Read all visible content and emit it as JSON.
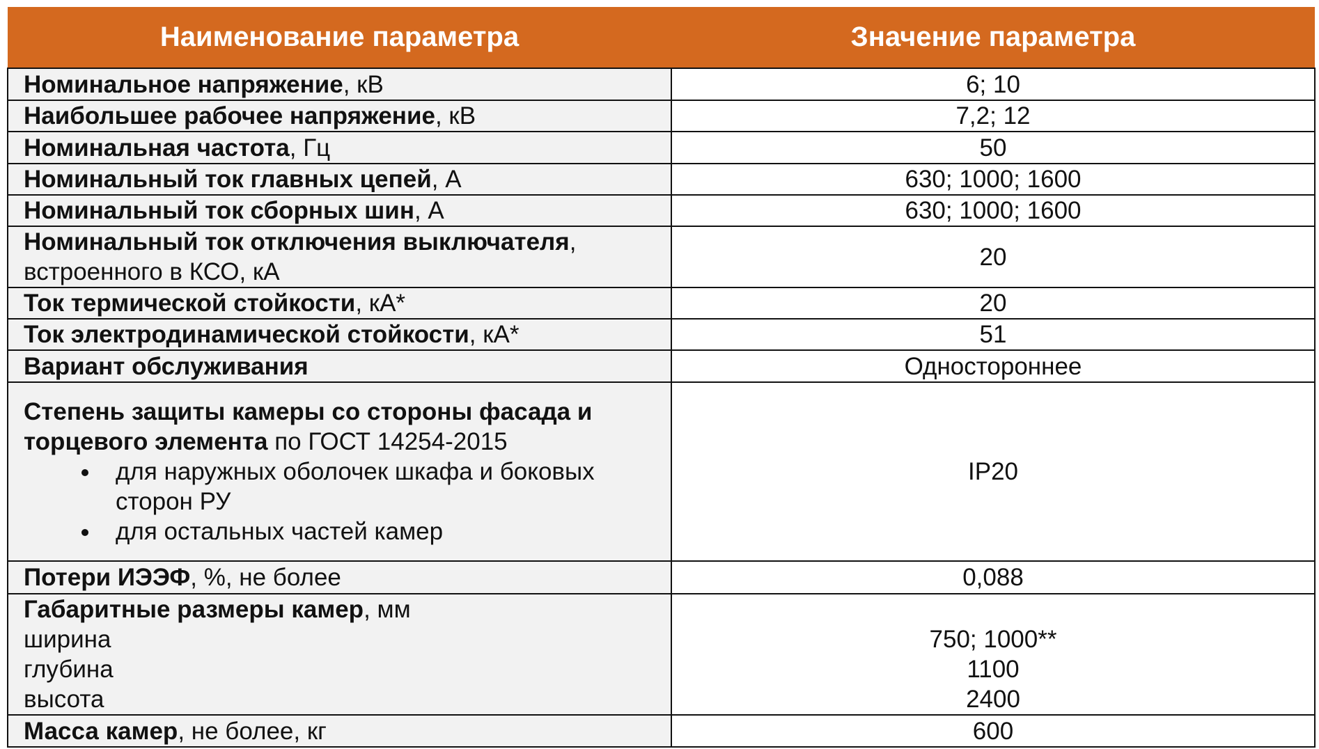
{
  "table": {
    "header": [
      "Наименование параметра",
      "Значение параметра"
    ],
    "rows": [
      {
        "name_bold": "Номинальное напряжение",
        "name_rest": ", кВ",
        "value": "6; 10"
      },
      {
        "name_bold": "Наибольшее рабочее напряжение",
        "name_rest": ", кВ",
        "value": "7,2; 12"
      },
      {
        "name_bold": "Номинальная частота",
        "name_rest": ", Гц",
        "value": "50"
      },
      {
        "name_bold": "Номинальный ток главных цепей",
        "name_rest": ", А",
        "value": "630; 1000; 1600"
      },
      {
        "name_bold": "Номинальный ток сборных шин",
        "name_rest": ", А",
        "value": "630; 1000; 1600"
      },
      {
        "name_bold": "Номинальный ток отключения выключателя",
        "name_rest": ", встроенного в КСО, кА",
        "value": "20"
      },
      {
        "name_bold": "Ток термической стойкости",
        "name_rest": ", кА*",
        "value": "20"
      },
      {
        "name_bold": "Ток электродинамической стойкости",
        "name_rest": ", кА*",
        "value": "51"
      },
      {
        "name_bold": "Вариант обслуживания",
        "value": "Одностороннее"
      },
      {
        "name_bold": "Степень защиты камеры со стороны фасада и торцевого элемента",
        "name_rest": "по ГОСТ 14254-2015",
        "bullets": [
          "для наружных оболочек шкафа и боковых сторон РУ",
          "для остальных частей камер"
        ],
        "value": "IP20"
      },
      {
        "name_bold": "Потери ИЭЭФ",
        "name_rest": ", %, не более",
        "value": "0,088"
      },
      {
        "name_bold": "Габаритные размеры камер",
        "name_rest": ", мм",
        "sublines": [
          "ширина",
          "глубина",
          "высота"
        ],
        "values": [
          "750; 1000**",
          "1100",
          "2400"
        ]
      },
      {
        "name_bold": "Масса камер",
        "name_rest": ", не более, кг",
        "value": "600"
      }
    ]
  }
}
